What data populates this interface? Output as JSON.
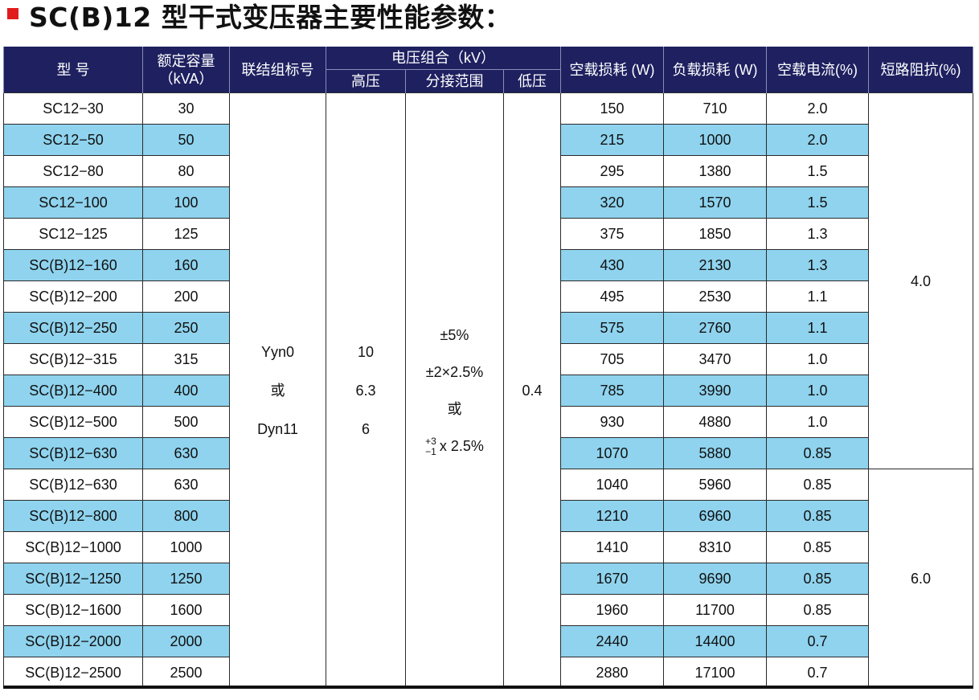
{
  "title": "SC(B)12 型干式变压器主要性能参数：",
  "headers": {
    "model": "型  号",
    "capacity_line1": "额定容量",
    "capacity_line2": "（kVA）",
    "vector_group": "联结组标号",
    "voltage_group": "电压组合（kV）",
    "hv": "高压",
    "tap_range": "分接范围",
    "lv": "低压",
    "no_load_loss": "空载损耗 (W)",
    "load_loss": "负载损耗 (W)",
    "no_load_current": "空载电流(%)",
    "impedance": "短路阻抗(%)"
  },
  "merged": {
    "vector_group": [
      "Yyn0",
      "或",
      "Dyn11"
    ],
    "hv": [
      "10",
      "6.3",
      "6"
    ],
    "tap": [
      "±5%",
      "±2×2.5%",
      "或",
      "x 2.5%"
    ],
    "tap_sup_top": "+3",
    "tap_sup_bottom": "−1",
    "lv": "0.4",
    "impedance_a": "4.0",
    "impedance_b": "6.0"
  },
  "rows": [
    {
      "model": "SC12−30",
      "capacity": "30",
      "no_load": "150",
      "load": "710",
      "current": "2.0"
    },
    {
      "model": "SC12−50",
      "capacity": "50",
      "no_load": "215",
      "load": "1000",
      "current": "2.0"
    },
    {
      "model": "SC12−80",
      "capacity": "80",
      "no_load": "295",
      "load": "1380",
      "current": "1.5"
    },
    {
      "model": "SC12−100",
      "capacity": "100",
      "no_load": "320",
      "load": "1570",
      "current": "1.5"
    },
    {
      "model": "SC12−125",
      "capacity": "125",
      "no_load": "375",
      "load": "1850",
      "current": "1.3"
    },
    {
      "model": "SC(B)12−160",
      "capacity": "160",
      "no_load": "430",
      "load": "2130",
      "current": "1.3"
    },
    {
      "model": "SC(B)12−200",
      "capacity": "200",
      "no_load": "495",
      "load": "2530",
      "current": "1.1"
    },
    {
      "model": "SC(B)12−250",
      "capacity": "250",
      "no_load": "575",
      "load": "2760",
      "current": "1.1"
    },
    {
      "model": "SC(B)12−315",
      "capacity": "315",
      "no_load": "705",
      "load": "3470",
      "current": "1.0"
    },
    {
      "model": "SC(B)12−400",
      "capacity": "400",
      "no_load": "785",
      "load": "3990",
      "current": "1.0"
    },
    {
      "model": "SC(B)12−500",
      "capacity": "500",
      "no_load": "930",
      "load": "4880",
      "current": "1.0"
    },
    {
      "model": "SC(B)12−630",
      "capacity": "630",
      "no_load": "1070",
      "load": "5880",
      "current": "0.85"
    },
    {
      "model": "SC(B)12−630",
      "capacity": "630",
      "no_load": "1040",
      "load": "5960",
      "current": "0.85"
    },
    {
      "model": "SC(B)12−800",
      "capacity": "800",
      "no_load": "1210",
      "load": "6960",
      "current": "0.85"
    },
    {
      "model": "SC(B)12−1000",
      "capacity": "1000",
      "no_load": "1410",
      "load": "8310",
      "current": "0.85"
    },
    {
      "model": "SC(B)12−1250",
      "capacity": "1250",
      "no_load": "1670",
      "load": "9690",
      "current": "0.85"
    },
    {
      "model": "SC(B)12−1600",
      "capacity": "1600",
      "no_load": "1960",
      "load": "11700",
      "current": "0.85"
    },
    {
      "model": "SC(B)12−2000",
      "capacity": "2000",
      "no_load": "2440",
      "load": "14400",
      "current": "0.7"
    },
    {
      "model": "SC(B)12−2500",
      "capacity": "2500",
      "no_load": "2880",
      "load": "17100",
      "current": "0.7"
    }
  ],
  "colors": {
    "header_bg": "#1e2060",
    "row_alt_bg": "#8fd3ee",
    "title_marker": "#e11b1b"
  }
}
